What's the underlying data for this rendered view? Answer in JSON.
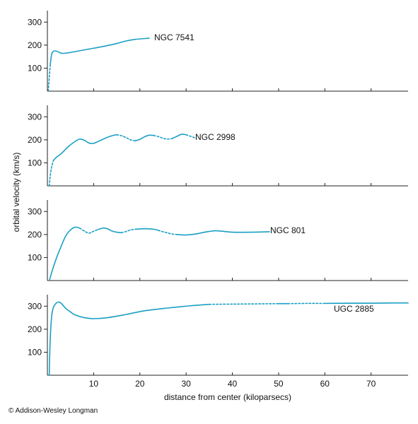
{
  "chart_data": {
    "type": "line",
    "xlabel": "distance from center (kiloparsecs)",
    "ylabel": "orbital velocity (km/s)",
    "xlim": [
      0,
      78
    ],
    "ylim": [
      0,
      350
    ],
    "x_ticks": [
      10,
      20,
      30,
      40,
      50,
      60,
      70
    ],
    "y_ticks": [
      100,
      200,
      300
    ],
    "line_color": "#1a9fc3",
    "copyright": "© Addison-Wesley Longman",
    "panels": [
      {
        "name": "NGC 7541",
        "segments": [
          {
            "style": "dashed",
            "points": [
              [
                0.2,
                0
              ],
              [
                0.3,
                30
              ],
              [
                0.45,
                70
              ],
              [
                0.6,
                110
              ]
            ]
          },
          {
            "style": "solid",
            "points": [
              [
                0.6,
                110
              ],
              [
                0.8,
                145
              ],
              [
                1.0,
                165
              ],
              [
                1.3,
                173
              ],
              [
                1.7,
                175
              ],
              [
                2.2,
                172
              ],
              [
                3.0,
                165
              ],
              [
                4.0,
                165
              ],
              [
                6,
                172
              ],
              [
                9,
                183
              ],
              [
                12,
                194
              ],
              [
                15,
                207
              ],
              [
                17,
                218
              ],
              [
                19,
                225
              ],
              [
                22,
                230
              ]
            ]
          }
        ]
      },
      {
        "name": "NGC 2998",
        "segments": [
          {
            "style": "dashed",
            "points": [
              [
                0.4,
                0
              ],
              [
                0.6,
                40
              ],
              [
                0.9,
                80
              ],
              [
                1.3,
                110
              ]
            ]
          },
          {
            "style": "solid",
            "points": [
              [
                1.3,
                110
              ],
              [
                2,
                125
              ],
              [
                3,
                140
              ],
              [
                4.5,
                170
              ],
              [
                6,
                193
              ],
              [
                7,
                203
              ],
              [
                8,
                198
              ],
              [
                9,
                186
              ],
              [
                10,
                185
              ],
              [
                11,
                193
              ],
              [
                12.5,
                207
              ],
              [
                14,
                218
              ],
              [
                15,
                222
              ]
            ]
          },
          {
            "style": "dashed",
            "points": [
              [
                15,
                222
              ],
              [
                16,
                218
              ],
              [
                17,
                210
              ],
              [
                18,
                200
              ],
              [
                19,
                196
              ]
            ]
          },
          {
            "style": "solid",
            "points": [
              [
                19,
                196
              ],
              [
                20,
                202
              ],
              [
                21,
                213
              ],
              [
                22,
                220
              ],
              [
                23,
                219
              ]
            ]
          },
          {
            "style": "dashed",
            "points": [
              [
                23,
                219
              ],
              [
                24,
                214
              ],
              [
                25,
                207
              ],
              [
                26,
                203
              ],
              [
                27,
                206
              ]
            ]
          },
          {
            "style": "solid",
            "points": [
              [
                27,
                206
              ],
              [
                28,
                215
              ],
              [
                29,
                224
              ],
              [
                30,
                222
              ]
            ]
          },
          {
            "style": "dashed",
            "points": [
              [
                30,
                222
              ],
              [
                31,
                215
              ],
              [
                32,
                208
              ]
            ]
          }
        ]
      },
      {
        "name": "NGC 801",
        "segments": [
          {
            "style": "solid",
            "points": [
              [
                0.5,
                5
              ],
              [
                1,
                40
              ],
              [
                2,
                100
              ],
              [
                3,
                150
              ],
              [
                4,
                195
              ],
              [
                5,
                220
              ],
              [
                6,
                232
              ],
              [
                7,
                228
              ]
            ]
          },
          {
            "style": "dashed",
            "points": [
              [
                7,
                228
              ],
              [
                8,
                215
              ],
              [
                9,
                206
              ],
              [
                10,
                214
              ],
              [
                11,
                222
              ]
            ]
          },
          {
            "style": "solid",
            "points": [
              [
                11,
                222
              ],
              [
                12,
                228
              ],
              [
                13,
                225
              ],
              [
                14,
                215
              ],
              [
                15,
                210
              ],
              [
                16,
                208
              ]
            ]
          },
          {
            "style": "dashed",
            "points": [
              [
                16,
                208
              ],
              [
                17,
                213
              ],
              [
                18,
                220
              ],
              [
                19,
                223
              ]
            ]
          },
          {
            "style": "solid",
            "points": [
              [
                19,
                223
              ],
              [
                21,
                225
              ],
              [
                23,
                223
              ],
              [
                24,
                218
              ]
            ]
          },
          {
            "style": "dashed",
            "points": [
              [
                24,
                218
              ],
              [
                25,
                212
              ],
              [
                26,
                207
              ],
              [
                27,
                202
              ],
              [
                28,
                200
              ]
            ]
          },
          {
            "style": "solid",
            "points": [
              [
                28,
                200
              ],
              [
                30,
                198
              ],
              [
                32,
                202
              ],
              [
                34,
                210
              ],
              [
                36,
                216
              ],
              [
                38,
                214
              ],
              [
                40,
                210
              ],
              [
                44,
                210
              ],
              [
                48,
                212
              ]
            ]
          }
        ]
      },
      {
        "name": "UGC 2885",
        "segments": [
          {
            "style": "solid",
            "points": [
              [
                0.4,
                0
              ],
              [
                0.6,
                150
              ],
              [
                0.9,
                250
              ],
              [
                1.3,
                295
              ],
              [
                2,
                315
              ],
              [
                2.5,
                318
              ],
              [
                3,
                312
              ],
              [
                4,
                290
              ],
              [
                5,
                275
              ],
              [
                6,
                262
              ],
              [
                8,
                250
              ],
              [
                10,
                246
              ],
              [
                13,
                250
              ],
              [
                17,
                264
              ],
              [
                21,
                280
              ],
              [
                26,
                292
              ],
              [
                31,
                302
              ],
              [
                35,
                308
              ]
            ]
          },
          {
            "style": "dashed",
            "points": [
              [
                35,
                308
              ],
              [
                40,
                309
              ],
              [
                45,
                310
              ],
              [
                50,
                311
              ]
            ]
          },
          {
            "style": "solid",
            "points": [
              [
                50,
                311
              ],
              [
                52,
                311
              ]
            ]
          },
          {
            "style": "dashed",
            "points": [
              [
                52,
                311
              ],
              [
                56,
                312
              ],
              [
                60,
                312
              ]
            ]
          },
          {
            "style": "solid",
            "points": [
              [
                60,
                312
              ],
              [
                65,
                313
              ],
              [
                70,
                313
              ],
              [
                75,
                314
              ],
              [
                78,
                314
              ]
            ]
          }
        ]
      }
    ]
  }
}
